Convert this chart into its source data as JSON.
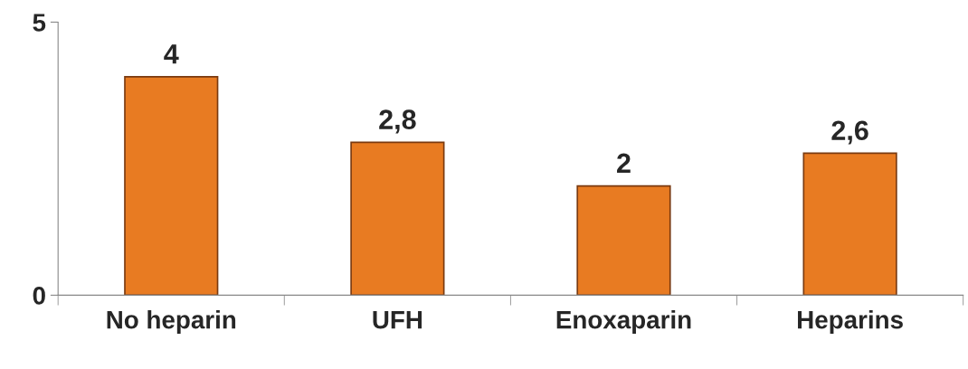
{
  "chart_data": {
    "type": "bar",
    "categories": [
      "No heparin",
      "UFH",
      "Enoxaparin",
      "Heparins"
    ],
    "values": [
      4,
      2.8,
      2,
      2.6
    ],
    "value_labels": [
      "4",
      "2,8",
      "2",
      "2,6"
    ],
    "color": "#e87b22",
    "ylim": [
      0,
      5
    ],
    "yticks": [
      0,
      5
    ],
    "grid": false,
    "legend": false
  }
}
